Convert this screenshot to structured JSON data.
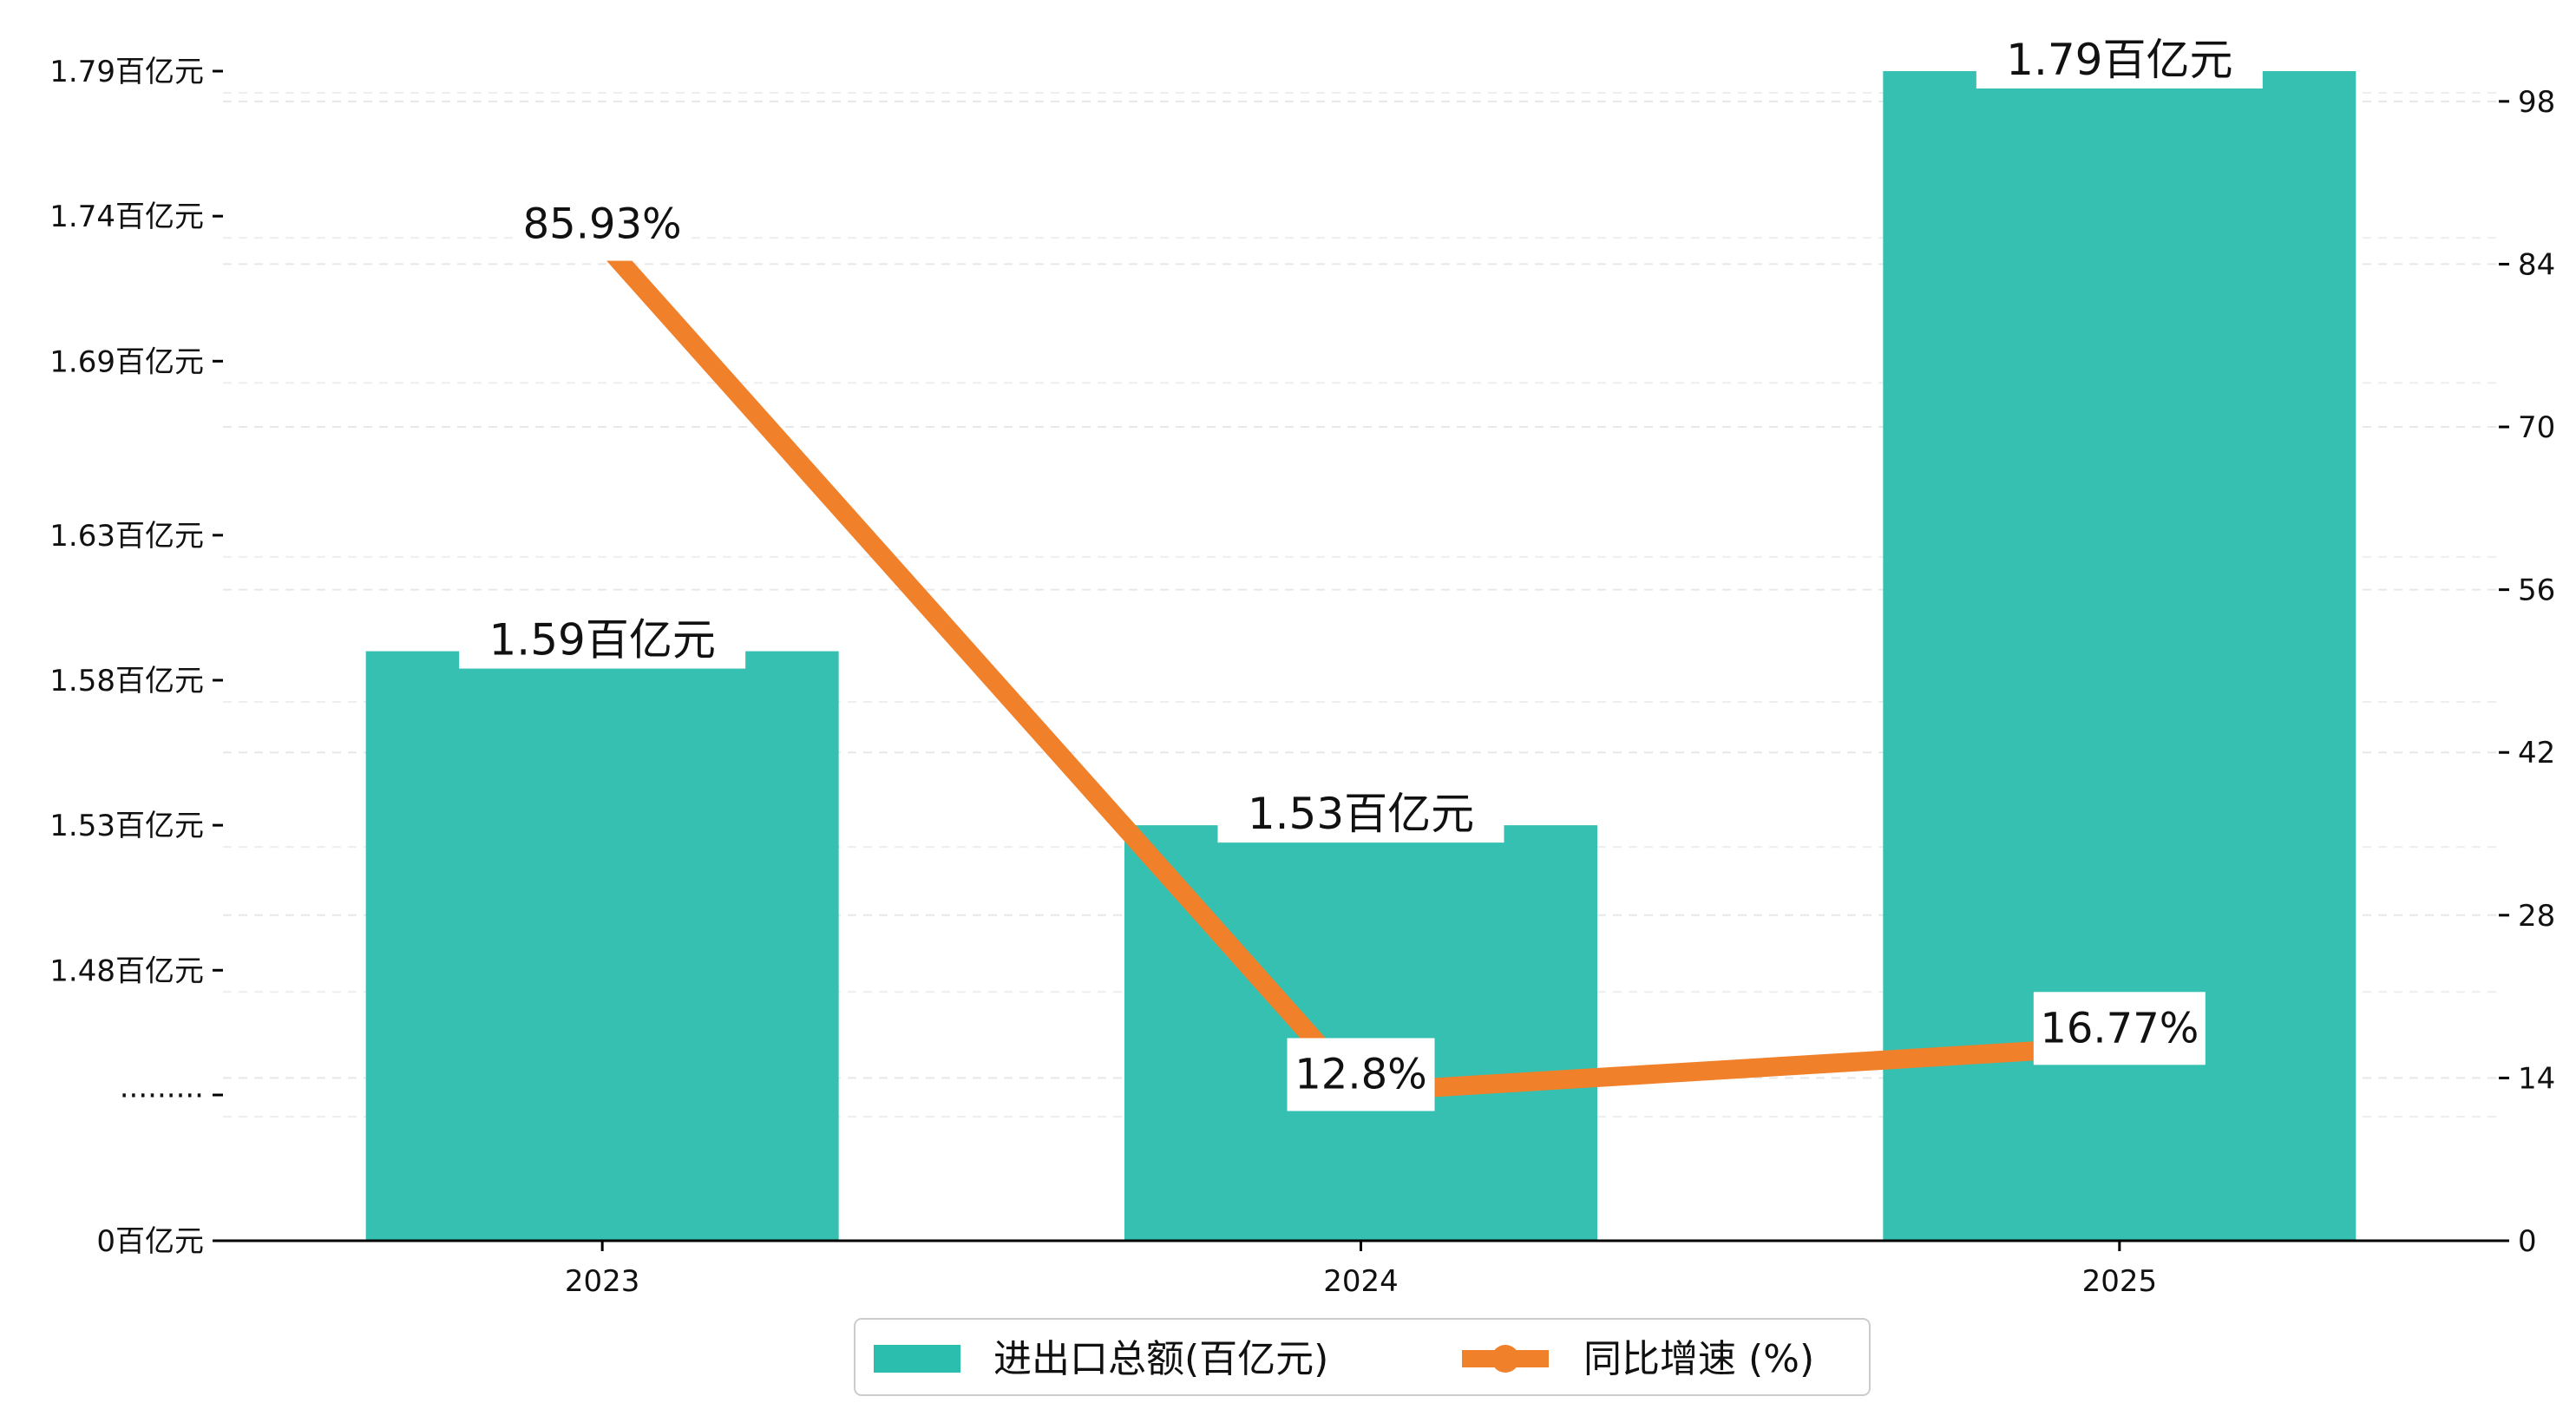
{
  "chart_data": {
    "type": "bar",
    "categories": [
      "2023",
      "2024",
      "2025"
    ],
    "series": [
      {
        "name": "进出口总额(百亿元)",
        "kind": "bar",
        "axis": "left",
        "color": "#2bbdae",
        "values": [
          1.59,
          1.53,
          1.79
        ],
        "labels": [
          "1.59百亿元",
          "1.53百亿元",
          "1.79百亿元"
        ]
      },
      {
        "name": "同比增速 (%)",
        "kind": "line",
        "axis": "right",
        "color": "#f0802a",
        "values": [
          85.93,
          12.8,
          16.77
        ],
        "labels": [
          "85.93%",
          "12.8%",
          "16.77%"
        ]
      }
    ],
    "y_left": {
      "tick_values": [
        0,
        1.437,
        1.48,
        1.53,
        1.58,
        1.63,
        1.69,
        1.74,
        1.79
      ],
      "tick_labels": [
        "0百亿元",
        "·········",
        "1.48百亿元",
        "1.53百亿元",
        "1.58百亿元",
        "1.63百亿元",
        "1.69百亿元",
        "1.74百亿元",
        "1.79百亿元"
      ],
      "broken_axis": true
    },
    "y_right": {
      "ticks": [
        0,
        14,
        28,
        42,
        56,
        70,
        84,
        98
      ],
      "ylim": [
        0,
        100.6
      ]
    },
    "grid": true,
    "legend_position": "bottom-center"
  }
}
